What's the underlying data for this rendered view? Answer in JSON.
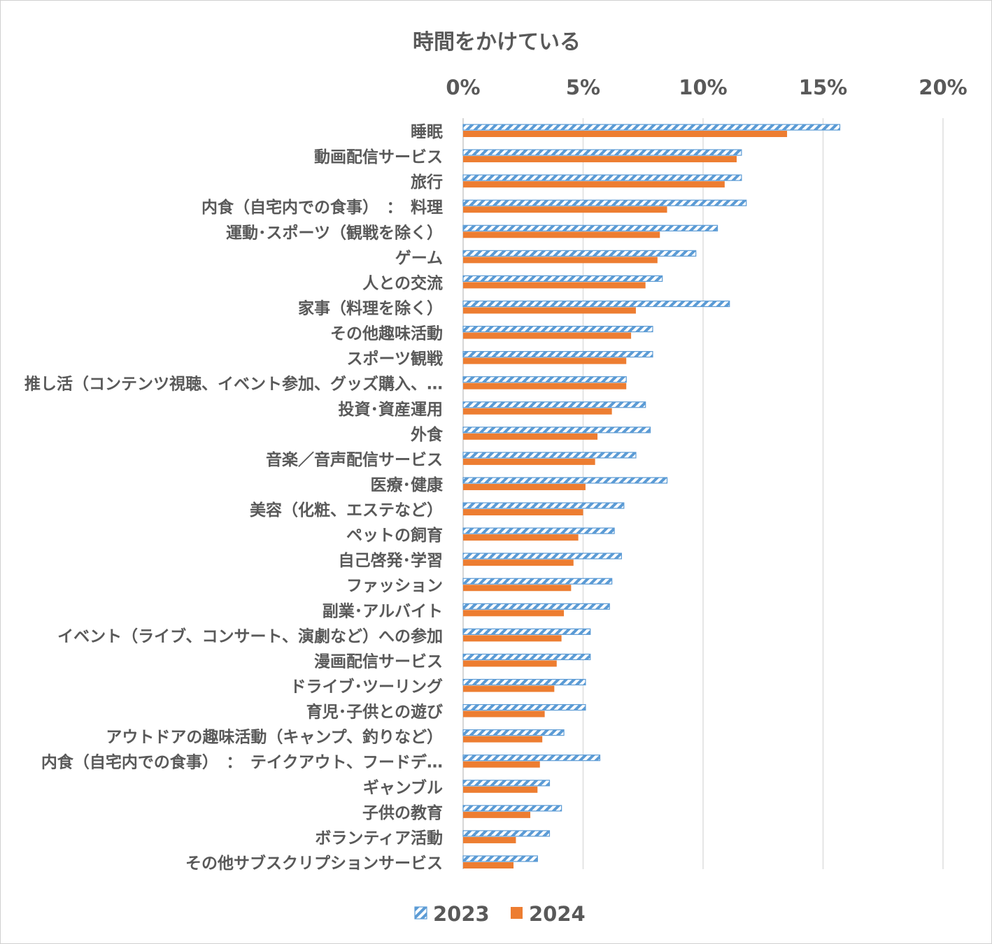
{
  "chart_data": {
    "type": "bar",
    "orientation": "horizontal",
    "title": "時間をかけている",
    "xlabel": "",
    "ylabel": "",
    "xlim": [
      0,
      20
    ],
    "ticks": [
      "0%",
      "5%",
      "10%",
      "15%",
      "20%"
    ],
    "tick_values": [
      0,
      5,
      10,
      15,
      20
    ],
    "grid": true,
    "legend_position": "bottom",
    "categories": [
      "睡眠",
      "動画配信サービス",
      "旅行",
      "内食（自宅内での食事）　：　料理",
      "運動･スポーツ（観戦を除く）",
      "ゲーム",
      "人との交流",
      "家事（料理を除く）",
      "その他趣味活動",
      "スポーツ観戦",
      "推し活（コンテンツ視聴、イベント参加、グッズ購入、…",
      "投資･資産運用",
      "外食",
      "音楽／音声配信サービス",
      "医療･健康",
      "美容（化粧、エステなど）",
      "ペットの飼育",
      "自己啓発･学習",
      "ファッション",
      "副業･アルバイト",
      "イベント（ライブ、コンサート、演劇など）への参加",
      "漫画配信サービス",
      "ドライブ･ツーリング",
      "育児･子供との遊び",
      "アウトドアの趣味活動（キャンプ、釣りなど）",
      "内食（自宅内での食事）　：　テイクアウト、フードデ…",
      "ギャンブル",
      "子供の教育",
      "ボランティア活動",
      "その他サブスクリプションサービス"
    ],
    "series": [
      {
        "name": "2023",
        "color": "#5b9bd5",
        "pattern": "diagonal-stripes",
        "values": [
          15.7,
          11.6,
          11.6,
          11.8,
          10.6,
          9.7,
          8.3,
          11.1,
          7.9,
          7.9,
          6.8,
          7.6,
          7.8,
          7.2,
          8.5,
          6.7,
          6.3,
          6.6,
          6.2,
          6.1,
          5.3,
          5.3,
          5.1,
          5.1,
          4.2,
          5.7,
          3.6,
          4.1,
          3.6,
          3.1
        ]
      },
      {
        "name": "2024",
        "color": "#ed7d31",
        "pattern": "solid",
        "values": [
          13.5,
          11.4,
          10.9,
          8.5,
          8.2,
          8.1,
          7.6,
          7.2,
          7.0,
          6.8,
          6.8,
          6.2,
          5.6,
          5.5,
          5.1,
          5.0,
          4.8,
          4.6,
          4.5,
          4.2,
          4.1,
          3.9,
          3.8,
          3.4,
          3.3,
          3.2,
          3.1,
          2.8,
          2.2,
          2.1
        ]
      }
    ]
  }
}
